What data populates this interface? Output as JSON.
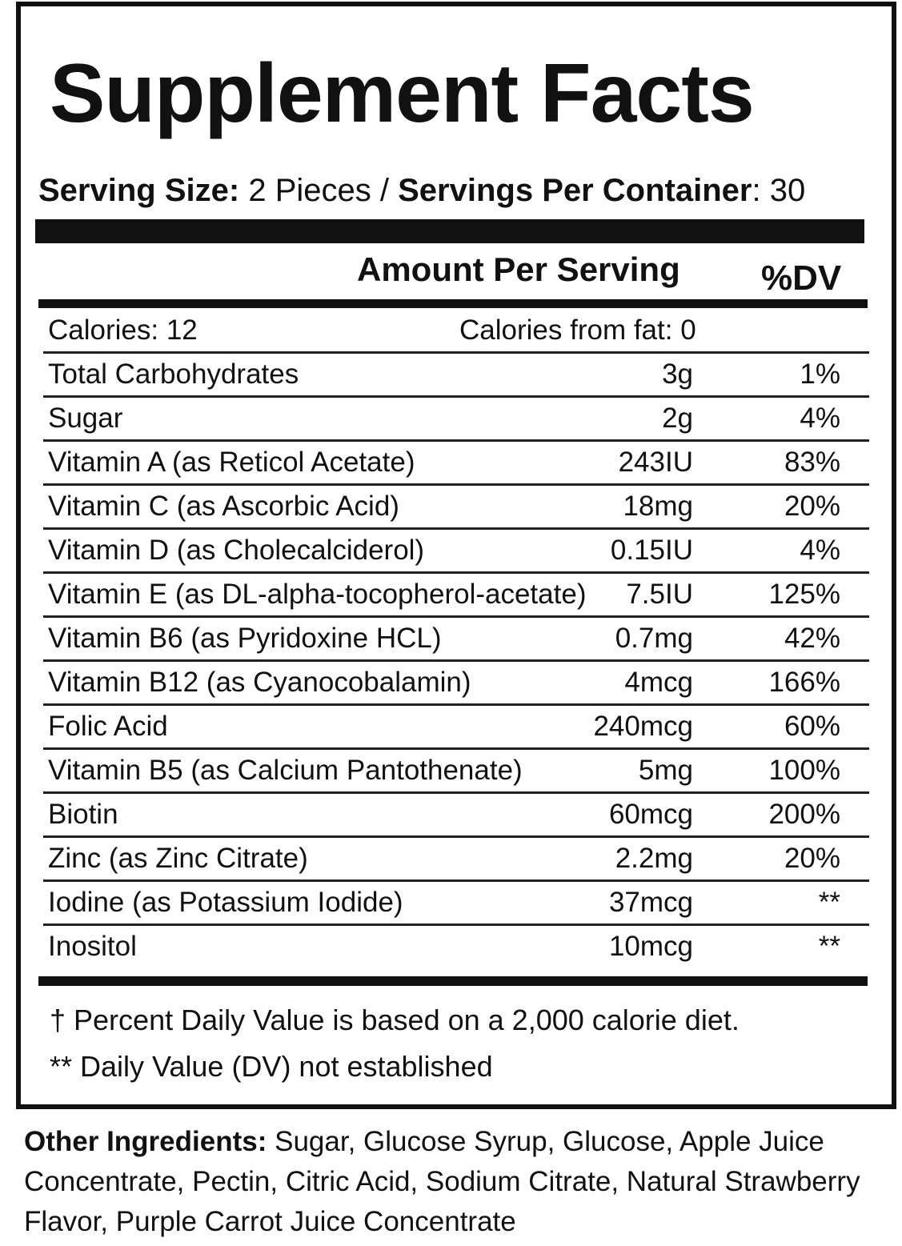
{
  "title": "Supplement Facts",
  "serving": {
    "size_label": "Serving Size:",
    "size": "2 Pieces /",
    "per_container_label": "Servings Per Container",
    "per_container": ": 30"
  },
  "table": {
    "header": {
      "amount": "Amount Per Serving",
      "dv": "%DV"
    },
    "calories": {
      "calories": "Calories: 12",
      "from_fat": "Calories from fat: 0"
    },
    "rows": [
      [
        "Total Carbohydrates",
        "3g",
        "1%"
      ],
      [
        "Sugar",
        "2g",
        "4%"
      ],
      [
        "Vitamin A (as Reticol Acetate)",
        "243IU",
        "83%"
      ],
      [
        "Vitamin C (as Ascorbic Acid)",
        "18mg",
        "20%"
      ],
      [
        "Vitamin D (as Cholecalciderol)",
        "0.15IU",
        "4%"
      ],
      [
        "Vitamin E (as DL-alpha-tocopherol-acetate)",
        "7.5IU",
        "125%"
      ],
      [
        "Vitamin B6 (as Pyridoxine HCL)",
        "0.7mg",
        "42%"
      ],
      [
        "Vitamin B12 (as Cyanocobalamin)",
        "4mcg",
        "166%"
      ],
      [
        "Folic Acid",
        "240mcg",
        "60%"
      ],
      [
        "Vitamin B5 (as Calcium Pantothenate)",
        "5mg",
        "100%"
      ],
      [
        "Biotin",
        "60mcg",
        "200%"
      ],
      [
        "Zinc (as Zinc Citrate)",
        "2.2mg",
        "20%"
      ],
      [
        "Iodine (as Potassium Iodide)",
        "37mcg",
        "**"
      ],
      [
        "Inositol",
        "10mcg",
        "**"
      ]
    ]
  },
  "footnotes": [
    "†  Percent Daily Value is based on a 2,000 calorie diet.",
    "** Daily Value (DV) not established"
  ],
  "other_ingredients": {
    "label": "Other Ingredients:",
    "text": "Sugar, Glucose Syrup, Glucose, Apple Juice Concentrate, Pectin, Citric Acid, Sodium Citrate, Natural Strawberry Flavor, Purple Carrot Juice Concentrate"
  }
}
